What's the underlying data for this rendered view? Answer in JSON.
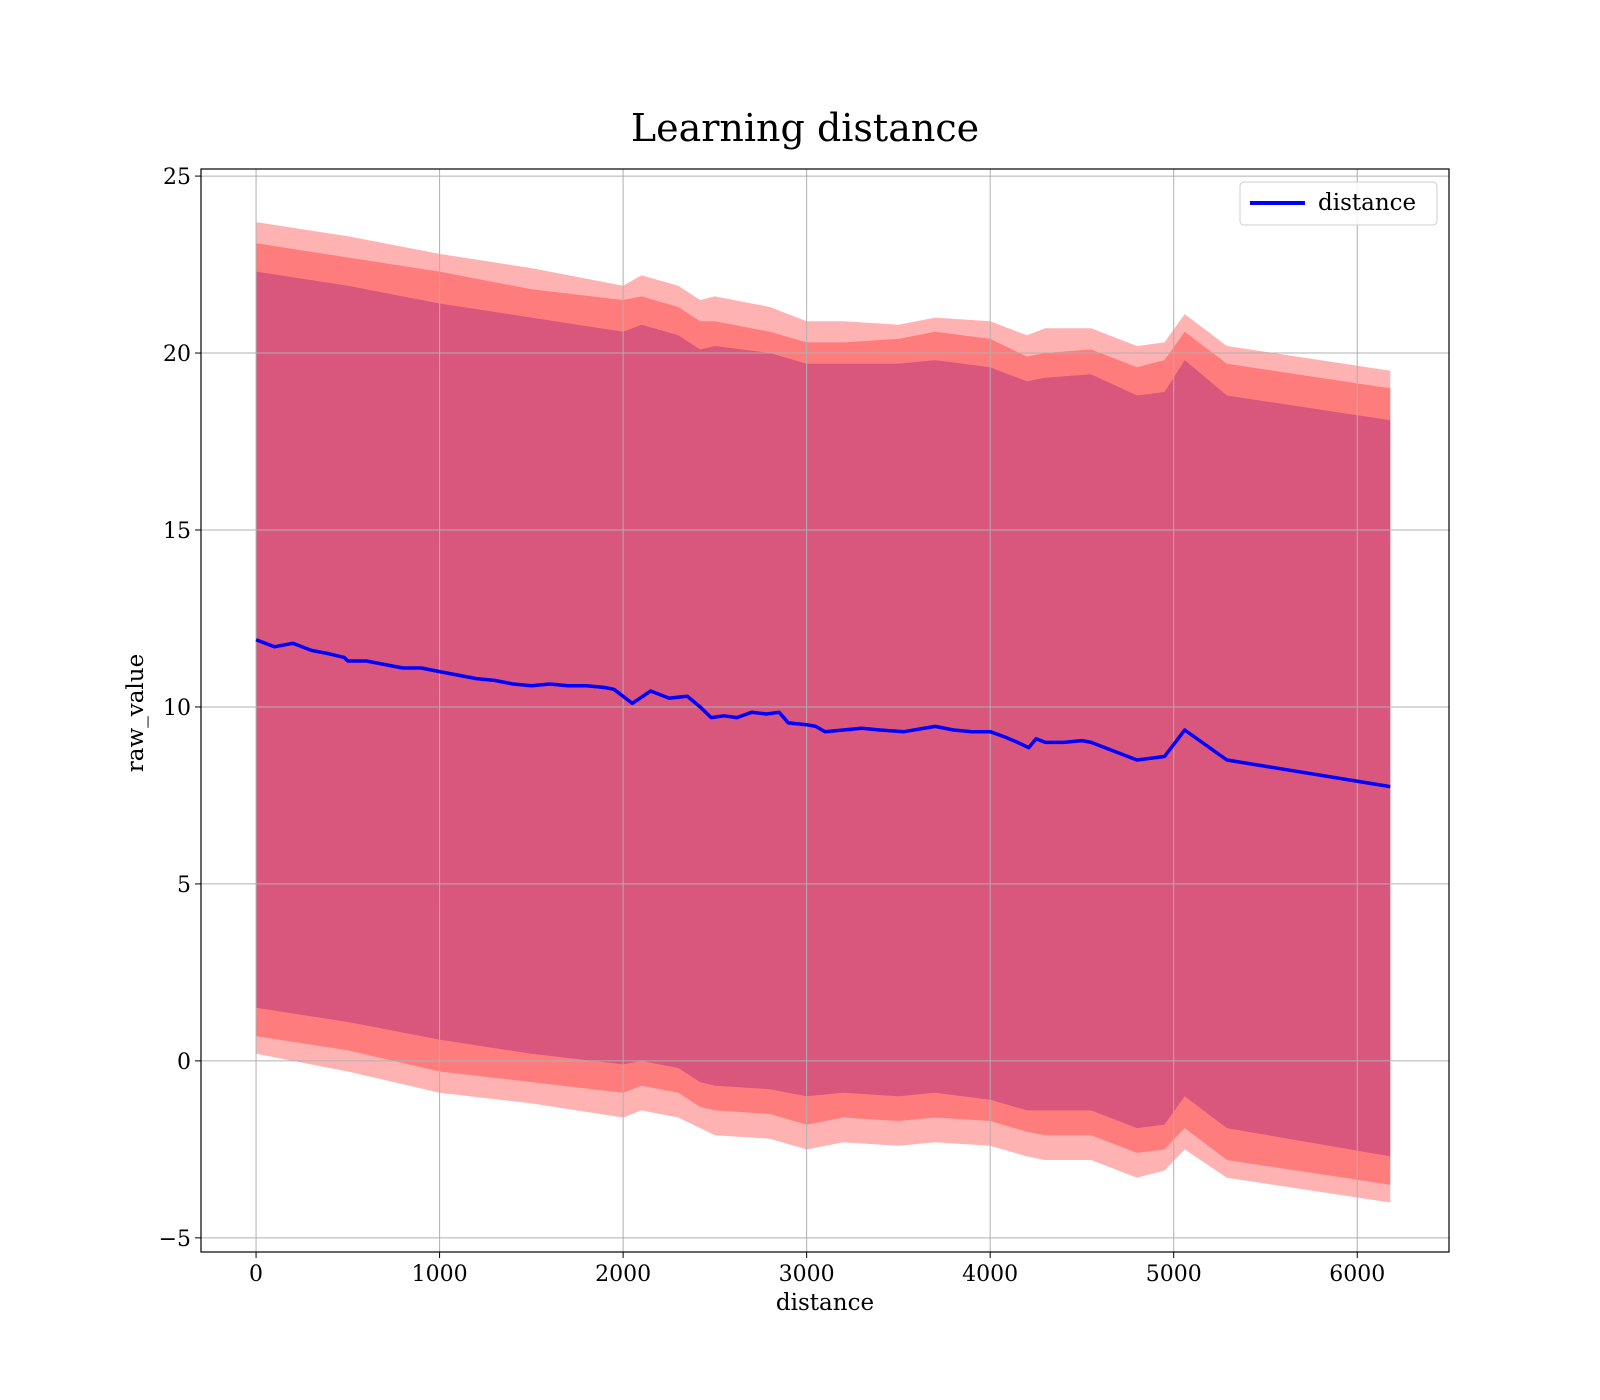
{
  "chart_data": {
    "type": "line",
    "title": "Learning distance",
    "xlabel": "distance",
    "ylabel": "raw_value",
    "xlim": [
      -300,
      6500
    ],
    "ylim": [
      -5.4,
      25.2
    ],
    "x_ticks": [
      0,
      1000,
      2000,
      3000,
      4000,
      5000,
      6000
    ],
    "y_ticks": [
      -5,
      0,
      5,
      10,
      15,
      20,
      25
    ],
    "x_tick_labels": [
      "0",
      "1000",
      "2000",
      "3000",
      "4000",
      "5000",
      "6000"
    ],
    "y_tick_labels": [
      "−5",
      "0",
      "5",
      "10",
      "15",
      "20",
      "25"
    ],
    "grid": true,
    "legend_position": "top-right",
    "series": [
      {
        "name": "distance",
        "color": "#0000ff",
        "x": [
          0,
          100,
          200,
          300,
          400,
          480,
          500,
          600,
          700,
          800,
          900,
          1000,
          1100,
          1200,
          1300,
          1400,
          1500,
          1600,
          1700,
          1800,
          1900,
          1950,
          2000,
          2050,
          2150,
          2250,
          2350,
          2420,
          2480,
          2550,
          2620,
          2700,
          2780,
          2850,
          2900,
          3000,
          3050,
          3100,
          3200,
          3300,
          3400,
          3530,
          3700,
          3800,
          3900,
          4000,
          4080,
          4150,
          4210,
          4250,
          4300,
          4400,
          4500,
          4550,
          4800,
          4950,
          5060,
          5290,
          6180
        ],
        "y": [
          11.9,
          11.7,
          11.8,
          11.6,
          11.5,
          11.4,
          11.3,
          11.3,
          11.2,
          11.1,
          11.1,
          11.0,
          10.9,
          10.8,
          10.75,
          10.65,
          10.6,
          10.65,
          10.6,
          10.6,
          10.55,
          10.5,
          10.3,
          10.1,
          10.45,
          10.25,
          10.3,
          10.0,
          9.7,
          9.75,
          9.7,
          9.85,
          9.8,
          9.85,
          9.55,
          9.5,
          9.45,
          9.3,
          9.35,
          9.4,
          9.35,
          9.3,
          9.45,
          9.35,
          9.3,
          9.3,
          9.15,
          9.0,
          8.85,
          9.1,
          9.0,
          9.0,
          9.05,
          9.0,
          8.5,
          8.6,
          9.35,
          8.5,
          7.75
        ]
      }
    ],
    "bands": [
      {
        "color": "#ff0000",
        "opacity": 0.3,
        "x": [
          0,
          500,
          1000,
          1500,
          2000,
          2100,
          2300,
          2420,
          2500,
          2800,
          3000,
          3200,
          3500,
          3700,
          4000,
          4200,
          4300,
          4550,
          4800,
          4950,
          5060,
          5290,
          6180
        ],
        "upper": [
          23.7,
          23.3,
          22.8,
          22.4,
          21.9,
          22.2,
          21.9,
          21.5,
          21.6,
          21.3,
          20.9,
          20.9,
          20.8,
          21.0,
          20.9,
          20.5,
          20.7,
          20.7,
          20.2,
          20.3,
          21.1,
          20.2,
          19.5
        ],
        "lower": [
          0.2,
          -0.3,
          -0.9,
          -1.2,
          -1.6,
          -1.4,
          -1.6,
          -1.9,
          -2.1,
          -2.2,
          -2.5,
          -2.3,
          -2.4,
          -2.3,
          -2.4,
          -2.7,
          -2.8,
          -2.8,
          -3.3,
          -3.1,
          -2.5,
          -3.3,
          -4.0
        ]
      },
      {
        "color": "#ff0000",
        "opacity": 0.3,
        "x": [
          0,
          500,
          1000,
          1500,
          2000,
          2100,
          2300,
          2420,
          2500,
          2800,
          3000,
          3200,
          3500,
          3700,
          4000,
          4200,
          4300,
          4550,
          4800,
          4950,
          5060,
          5290,
          6180
        ],
        "upper": [
          23.1,
          22.7,
          22.3,
          21.8,
          21.5,
          21.6,
          21.3,
          20.9,
          20.9,
          20.6,
          20.3,
          20.3,
          20.4,
          20.6,
          20.4,
          19.9,
          20.0,
          20.1,
          19.6,
          19.8,
          20.6,
          19.7,
          19.0
        ],
        "lower": [
          0.7,
          0.3,
          -0.3,
          -0.6,
          -0.9,
          -0.7,
          -0.9,
          -1.3,
          -1.4,
          -1.5,
          -1.8,
          -1.6,
          -1.7,
          -1.6,
          -1.7,
          -2.0,
          -2.1,
          -2.1,
          -2.6,
          -2.5,
          -1.9,
          -2.8,
          -3.5
        ]
      },
      {
        "color": "#800080",
        "opacity": 0.3,
        "x": [
          0,
          500,
          1000,
          1500,
          2000,
          2100,
          2300,
          2420,
          2500,
          2800,
          3000,
          3200,
          3500,
          3700,
          4000,
          4200,
          4300,
          4550,
          4800,
          4950,
          5060,
          5290,
          6180
        ],
        "upper": [
          22.3,
          21.9,
          21.4,
          21.0,
          20.6,
          20.8,
          20.5,
          20.1,
          20.2,
          20.0,
          19.7,
          19.7,
          19.7,
          19.8,
          19.6,
          19.2,
          19.3,
          19.4,
          18.8,
          18.9,
          19.8,
          18.8,
          18.1
        ],
        "lower": [
          1.5,
          1.1,
          0.6,
          0.2,
          -0.1,
          0.0,
          -0.2,
          -0.6,
          -0.7,
          -0.8,
          -1.0,
          -0.9,
          -1.0,
          -0.9,
          -1.1,
          -1.4,
          -1.4,
          -1.4,
          -1.9,
          -1.8,
          -1.0,
          -1.9,
          -2.7
        ]
      }
    ]
  }
}
